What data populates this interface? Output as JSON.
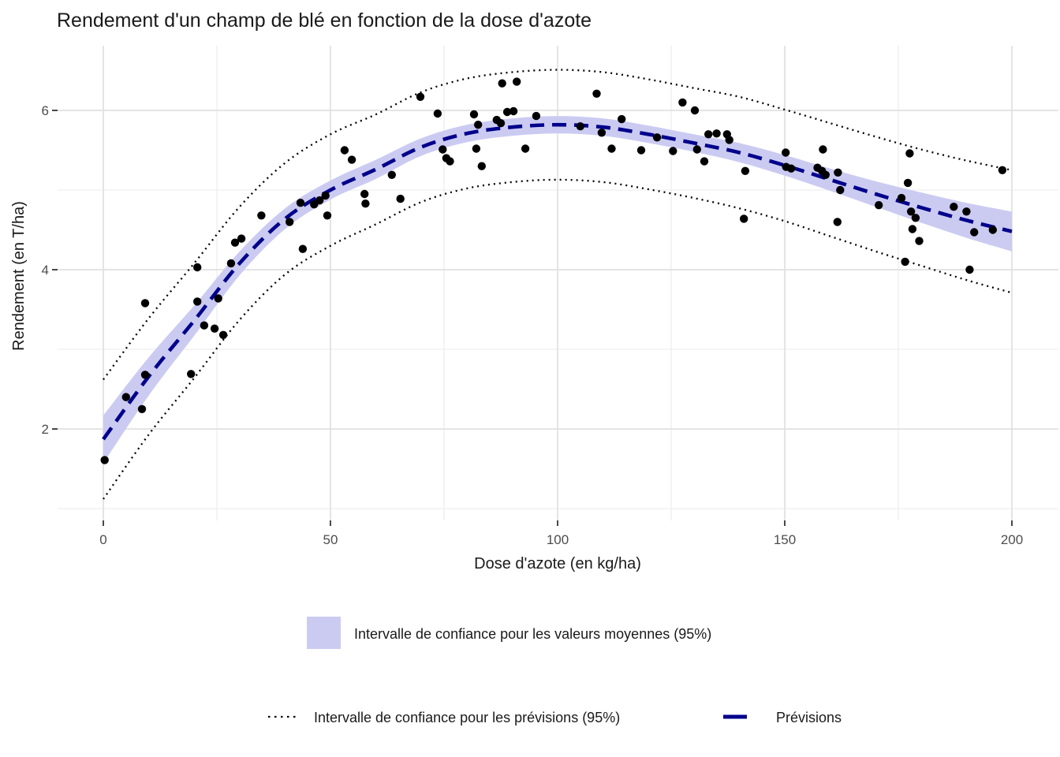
{
  "chart_data": {
    "type": "scatter",
    "title": "Rendement d'un champ de blé en fonction de la dose d'azote",
    "xlabel": "Dose d'azote (en kg/ha)",
    "ylabel": "Rendement (en T/ha)",
    "xlim": [
      -10,
      210
    ],
    "ylim": [
      0.85,
      6.78
    ],
    "grid": true,
    "legend_position": "bottom",
    "x_major_ticks": [
      0,
      50,
      100,
      150,
      200
    ],
    "x_minor_ticks": [
      25,
      75,
      125,
      175
    ],
    "y_major_ticks": [
      2,
      4,
      6
    ],
    "y_minor_ticks": [
      1,
      3,
      5
    ],
    "points": [
      [
        0.3,
        1.61
      ],
      [
        5,
        2.4
      ],
      [
        8.5,
        2.25
      ],
      [
        9.2,
        2.68
      ],
      [
        9.2,
        3.58
      ],
      [
        19.3,
        2.69
      ],
      [
        20.7,
        3.6
      ],
      [
        20.7,
        4.03
      ],
      [
        22.2,
        3.3
      ],
      [
        24.5,
        3.26
      ],
      [
        25.3,
        3.64
      ],
      [
        26.4,
        3.18
      ],
      [
        28.1,
        4.08
      ],
      [
        29,
        4.34
      ],
      [
        30.4,
        4.39
      ],
      [
        34.8,
        4.68
      ],
      [
        41,
        4.6
      ],
      [
        43.4,
        4.84
      ],
      [
        43.9,
        4.26
      ],
      [
        46.4,
        4.82
      ],
      [
        47.6,
        4.87
      ],
      [
        48.9,
        4.93
      ],
      [
        49.3,
        4.68
      ],
      [
        53.1,
        5.5
      ],
      [
        54.7,
        5.38
      ],
      [
        57.5,
        4.95
      ],
      [
        57.7,
        4.83
      ],
      [
        63.5,
        5.19
      ],
      [
        65.4,
        4.89
      ],
      [
        69.8,
        6.17
      ],
      [
        73.6,
        5.96
      ],
      [
        74.7,
        5.51
      ],
      [
        75.5,
        5.4
      ],
      [
        76.3,
        5.36
      ],
      [
        81.6,
        5.95
      ],
      [
        82.1,
        5.52
      ],
      [
        82.5,
        5.82
      ],
      [
        83.3,
        5.3
      ],
      [
        86.6,
        5.88
      ],
      [
        87.5,
        5.84
      ],
      [
        87.8,
        6.34
      ],
      [
        88.9,
        5.98
      ],
      [
        90.3,
        5.99
      ],
      [
        91,
        6.36
      ],
      [
        92.9,
        5.52
      ],
      [
        95.3,
        5.93
      ],
      [
        105,
        5.8
      ],
      [
        108.6,
        6.21
      ],
      [
        109.7,
        5.72
      ],
      [
        111.9,
        5.52
      ],
      [
        114.1,
        5.89
      ],
      [
        118.4,
        5.5
      ],
      [
        121.9,
        5.66
      ],
      [
        125.4,
        5.49
      ],
      [
        127.5,
        6.1
      ],
      [
        130.2,
        6.0
      ],
      [
        130.7,
        5.51
      ],
      [
        132.3,
        5.36
      ],
      [
        133.2,
        5.7
      ],
      [
        135,
        5.71
      ],
      [
        137.3,
        5.7
      ],
      [
        137.8,
        5.63
      ],
      [
        141,
        4.64
      ],
      [
        141.3,
        5.24
      ],
      [
        150.2,
        5.47
      ],
      [
        150.3,
        5.29
      ],
      [
        151.4,
        5.27
      ],
      [
        157.2,
        5.28
      ],
      [
        158.2,
        5.24
      ],
      [
        159,
        5.19
      ],
      [
        158.4,
        5.51
      ],
      [
        161.7,
        5.22
      ],
      [
        162.2,
        5.0
      ],
      [
        161.6,
        4.6
      ],
      [
        170.7,
        4.81
      ],
      [
        175.7,
        4.9
      ],
      [
        176.5,
        4.1
      ],
      [
        177.1,
        5.09
      ],
      [
        177.5,
        5.46
      ],
      [
        177.8,
        4.73
      ],
      [
        178.1,
        4.51
      ],
      [
        178.8,
        4.65
      ],
      [
        179.6,
        4.36
      ],
      [
        187.2,
        4.79
      ],
      [
        190,
        4.73
      ],
      [
        190.7,
        4.0
      ],
      [
        191.7,
        4.47
      ],
      [
        195.8,
        4.5
      ],
      [
        197.9,
        5.25
      ]
    ],
    "fit_x": [
      0,
      10,
      20,
      30,
      40,
      50,
      60,
      70,
      80,
      90,
      100,
      110,
      120,
      130,
      140,
      150,
      160,
      170,
      180,
      190,
      200
    ],
    "fit_y": [
      1.87,
      2.66,
      3.36,
      4.08,
      4.64,
      5.0,
      5.26,
      5.54,
      5.71,
      5.79,
      5.82,
      5.79,
      5.7,
      5.59,
      5.47,
      5.31,
      5.13,
      4.95,
      4.78,
      4.62,
      4.48
    ],
    "ci_half_width": [
      0.3,
      0.24,
      0.19,
      0.15,
      0.13,
      0.12,
      0.12,
      0.11,
      0.11,
      0.11,
      0.11,
      0.11,
      0.11,
      0.11,
      0.12,
      0.13,
      0.14,
      0.16,
      0.19,
      0.22,
      0.25
    ],
    "pi_half_width": [
      0.75,
      0.73,
      0.72,
      0.71,
      0.7,
      0.7,
      0.69,
      0.69,
      0.69,
      0.69,
      0.69,
      0.69,
      0.69,
      0.69,
      0.7,
      0.7,
      0.71,
      0.72,
      0.73,
      0.75,
      0.77
    ],
    "legend": {
      "band_label": "Intervalle de confiance pour les valeurs moyennes (95%)",
      "pi_label": "Intervalle de confiance pour les prévisions (95%)",
      "fit_label": "Prévisions"
    },
    "colors": {
      "band": "#CBCBF2",
      "fit_line": "#00008B",
      "pi_line": "#000000",
      "points": "#000000",
      "grid_major": "#E0E0E0",
      "grid_minor": "#EBEBEB",
      "axis_tick": "#333333",
      "tick_text": "#4D4D4D",
      "text": "#1A1A1A",
      "background": "#FFFFFF"
    }
  }
}
